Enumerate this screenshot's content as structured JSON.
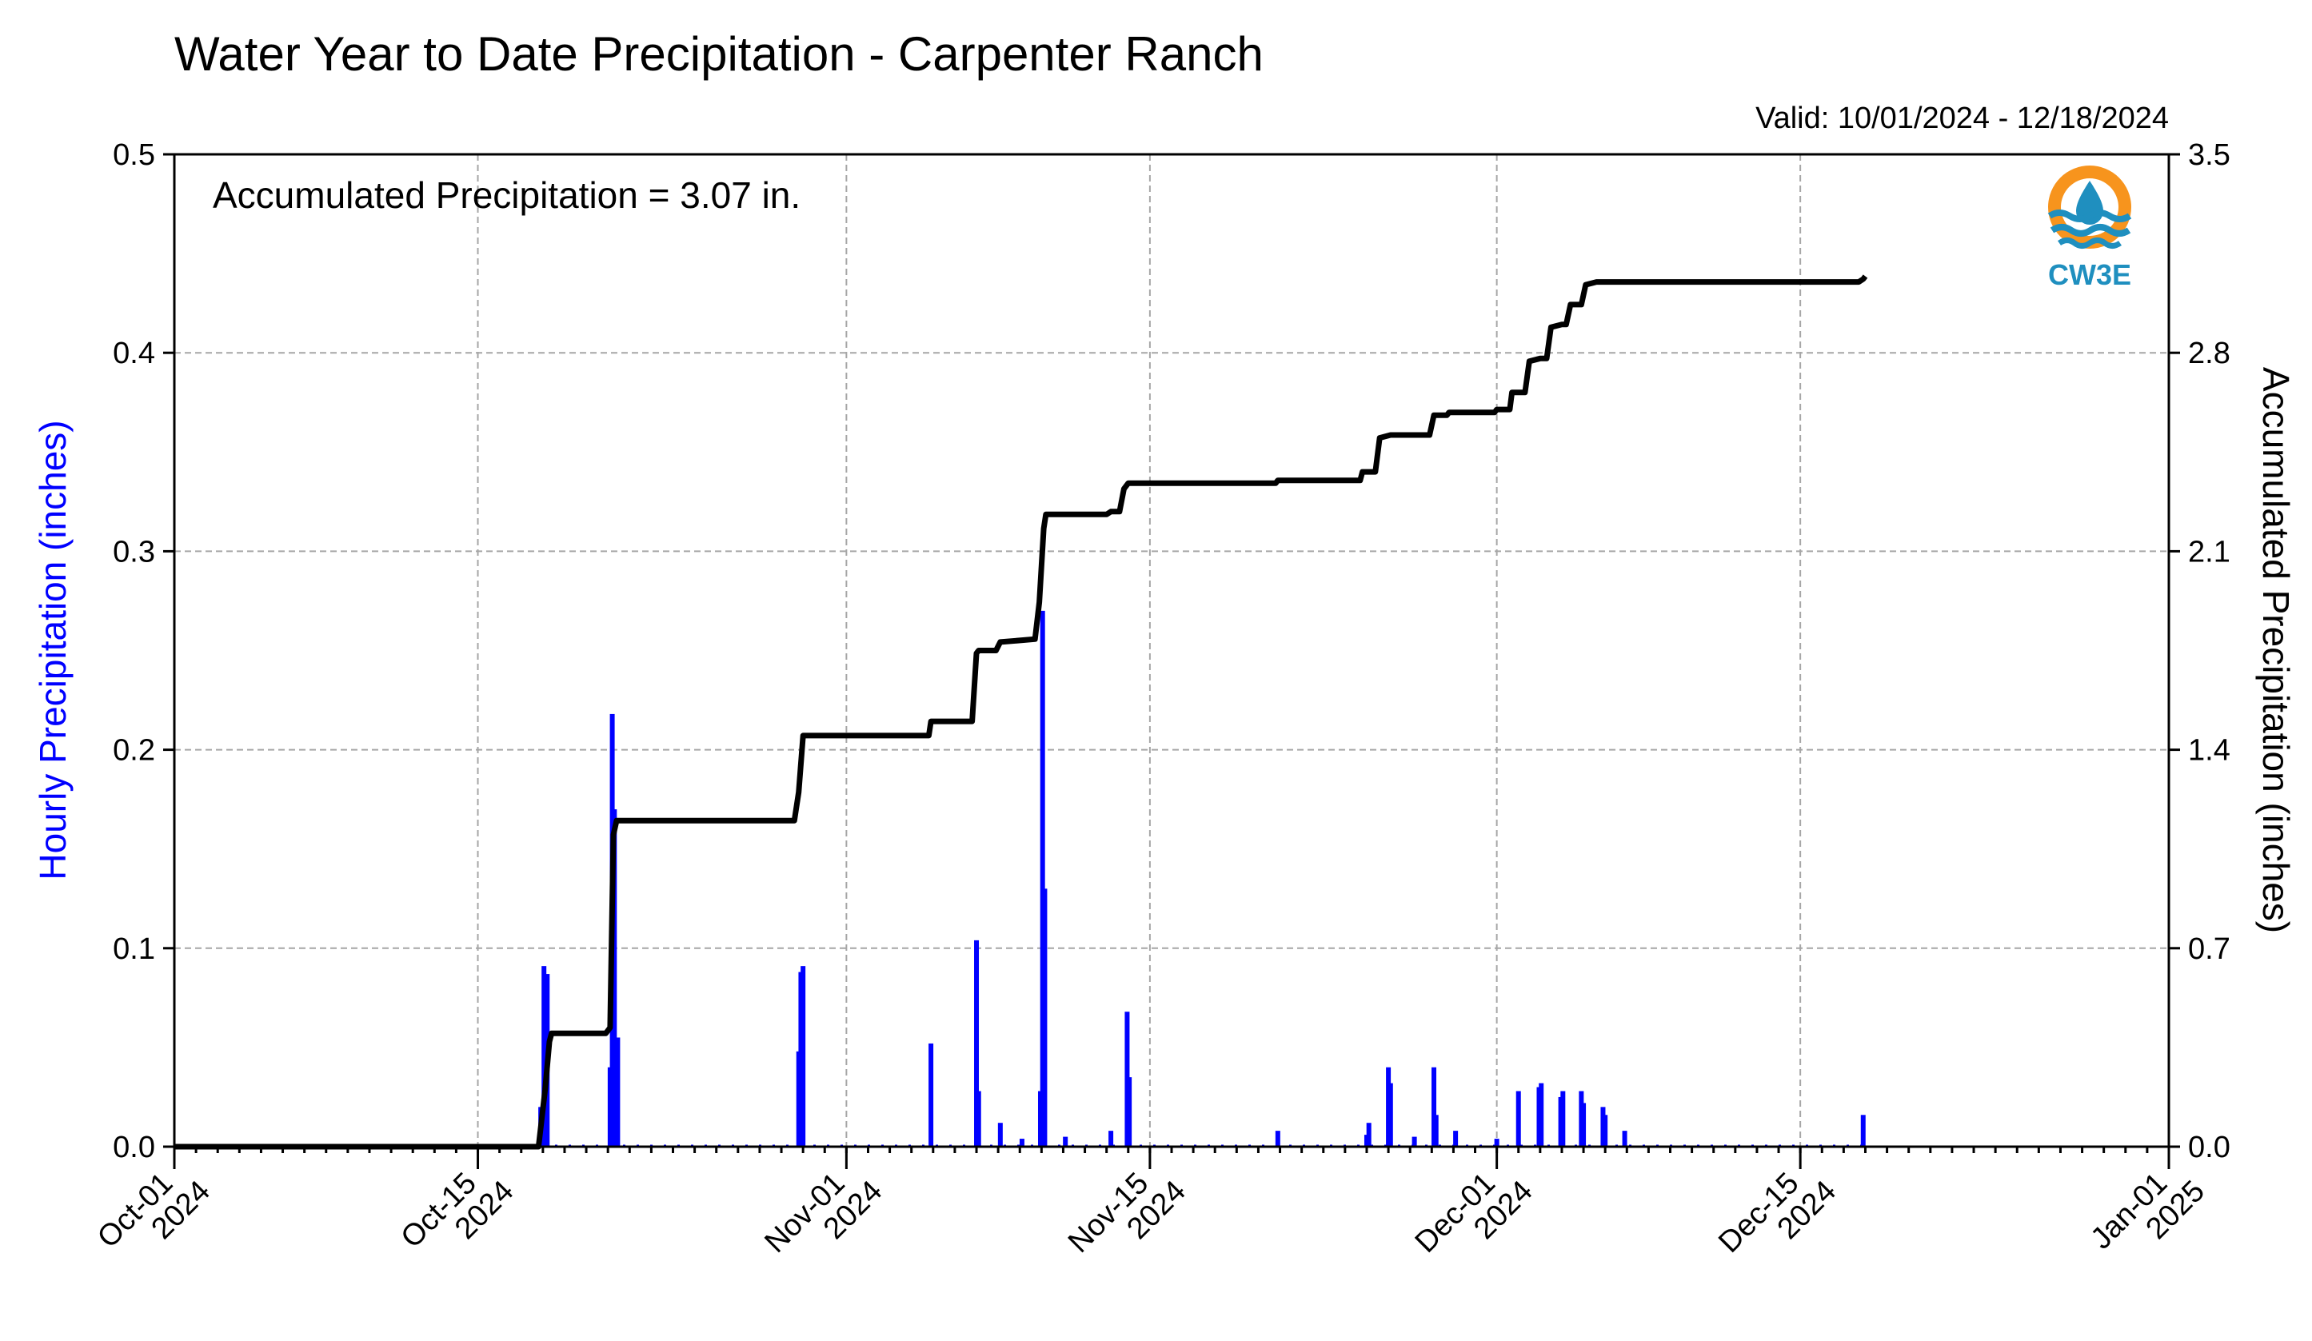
{
  "chart_data": {
    "type": "bar",
    "title": "Water Year to Date Precipitation - Carpenter Ranch",
    "valid_text": "Valid: 10/01/2024 - 12/18/2024",
    "annotation": "Accumulated Precipitation = 3.07 in.",
    "left_ylabel": "Hourly Precipitation (inches)",
    "right_ylabel": "Accumulated Precipitation (inches)",
    "left_ylim": [
      0,
      0.5
    ],
    "right_ylim": [
      0,
      3.5
    ],
    "left_yticks": [
      "0.0",
      "0.1",
      "0.2",
      "0.3",
      "0.4",
      "0.5"
    ],
    "right_yticks": [
      "0.0",
      "0.7",
      "1.4",
      "2.1",
      "2.8",
      "3.5"
    ],
    "xlim_days": [
      0,
      92
    ],
    "xticks": [
      {
        "day": 0,
        "line1": "Oct-01",
        "line2": "2024"
      },
      {
        "day": 14,
        "line1": "Oct-15",
        "line2": "2024"
      },
      {
        "day": 31,
        "line1": "Nov-01",
        "line2": "2024"
      },
      {
        "day": 45,
        "line1": "Nov-15",
        "line2": "2024"
      },
      {
        "day": 61,
        "line1": "Dec-01",
        "line2": "2024"
      },
      {
        "day": 75,
        "line1": "Dec-15",
        "line2": "2024"
      },
      {
        "day": 92,
        "line1": "Jan-01",
        "line2": "2025"
      }
    ],
    "grid": true,
    "series": [
      {
        "name": "Hourly Precipitation",
        "color": "#0000ff",
        "points": [
          {
            "day": 16.9,
            "value": 0.02
          },
          {
            "day": 17.05,
            "value": 0.091
          },
          {
            "day": 17.2,
            "value": 0.087
          },
          {
            "day": 20.1,
            "value": 0.04
          },
          {
            "day": 20.2,
            "value": 0.218
          },
          {
            "day": 20.3,
            "value": 0.17
          },
          {
            "day": 20.45,
            "value": 0.055
          },
          {
            "day": 28.8,
            "value": 0.048
          },
          {
            "day": 28.9,
            "value": 0.088
          },
          {
            "day": 29.0,
            "value": 0.091
          },
          {
            "day": 34.9,
            "value": 0.052
          },
          {
            "day": 37.0,
            "value": 0.104
          },
          {
            "day": 37.1,
            "value": 0.028
          },
          {
            "day": 38.1,
            "value": 0.012
          },
          {
            "day": 39.1,
            "value": 0.004
          },
          {
            "day": 39.95,
            "value": 0.028
          },
          {
            "day": 40.05,
            "value": 0.27
          },
          {
            "day": 40.15,
            "value": 0.13
          },
          {
            "day": 41.1,
            "value": 0.005
          },
          {
            "day": 43.2,
            "value": 0.008
          },
          {
            "day": 43.95,
            "value": 0.068
          },
          {
            "day": 44.05,
            "value": 0.035
          },
          {
            "day": 50.9,
            "value": 0.008
          },
          {
            "day": 55.0,
            "value": 0.006
          },
          {
            "day": 55.1,
            "value": 0.012
          },
          {
            "day": 56.0,
            "value": 0.04
          },
          {
            "day": 56.1,
            "value": 0.032
          },
          {
            "day": 57.2,
            "value": 0.005
          },
          {
            "day": 58.1,
            "value": 0.04
          },
          {
            "day": 58.2,
            "value": 0.016
          },
          {
            "day": 59.1,
            "value": 0.008
          },
          {
            "day": 61.0,
            "value": 0.004
          },
          {
            "day": 62.0,
            "value": 0.028
          },
          {
            "day": 62.95,
            "value": 0.03
          },
          {
            "day": 63.05,
            "value": 0.032
          },
          {
            "day": 63.95,
            "value": 0.025
          },
          {
            "day": 64.05,
            "value": 0.028
          },
          {
            "day": 64.9,
            "value": 0.028
          },
          {
            "day": 65.0,
            "value": 0.022
          },
          {
            "day": 65.9,
            "value": 0.02
          },
          {
            "day": 66.0,
            "value": 0.016
          },
          {
            "day": 66.9,
            "value": 0.008
          },
          {
            "day": 77.9,
            "value": 0.016
          }
        ]
      },
      {
        "name": "Accumulated Precipitation",
        "color": "#000000",
        "points": [
          [
            0,
            0
          ],
          [
            16.8,
            0
          ],
          [
            17.1,
            0.2
          ],
          [
            17.3,
            0.37
          ],
          [
            17.4,
            0.4
          ],
          [
            19.9,
            0.4
          ],
          [
            20.1,
            0.42
          ],
          [
            20.25,
            1.1
          ],
          [
            20.4,
            1.15
          ],
          [
            28.6,
            1.15
          ],
          [
            28.8,
            1.25
          ],
          [
            29.0,
            1.45
          ],
          [
            34.8,
            1.45
          ],
          [
            34.9,
            1.5
          ],
          [
            36.8,
            1.5
          ],
          [
            37.0,
            1.74
          ],
          [
            37.1,
            1.75
          ],
          [
            37.9,
            1.75
          ],
          [
            38.1,
            1.78
          ],
          [
            39.7,
            1.79
          ],
          [
            39.9,
            1.92
          ],
          [
            40.1,
            2.18
          ],
          [
            40.2,
            2.23
          ],
          [
            43.0,
            2.23
          ],
          [
            43.2,
            2.24
          ],
          [
            43.6,
            2.24
          ],
          [
            43.8,
            2.32
          ],
          [
            44.0,
            2.34
          ],
          [
            50.8,
            2.34
          ],
          [
            50.9,
            2.35
          ],
          [
            54.7,
            2.35
          ],
          [
            54.8,
            2.38
          ],
          [
            55.4,
            2.38
          ],
          [
            55.6,
            2.5
          ],
          [
            56.1,
            2.51
          ],
          [
            57.9,
            2.51
          ],
          [
            58.1,
            2.58
          ],
          [
            58.7,
            2.58
          ],
          [
            58.8,
            2.59
          ],
          [
            60.9,
            2.59
          ],
          [
            61.0,
            2.6
          ],
          [
            61.6,
            2.6
          ],
          [
            61.7,
            2.66
          ],
          [
            62.3,
            2.66
          ],
          [
            62.5,
            2.77
          ],
          [
            63.0,
            2.78
          ],
          [
            63.3,
            2.78
          ],
          [
            63.5,
            2.89
          ],
          [
            64.0,
            2.9
          ],
          [
            64.2,
            2.9
          ],
          [
            64.4,
            2.97
          ],
          [
            64.9,
            2.97
          ],
          [
            65.1,
            3.04
          ],
          [
            65.6,
            3.05
          ],
          [
            77.7,
            3.05
          ],
          [
            77.9,
            3.06
          ],
          [
            78.0,
            3.07
          ]
        ]
      }
    ]
  },
  "logo": {
    "label": "CW3E",
    "ring_color": "#f7941d",
    "wave_color": "#1f8fbf"
  }
}
